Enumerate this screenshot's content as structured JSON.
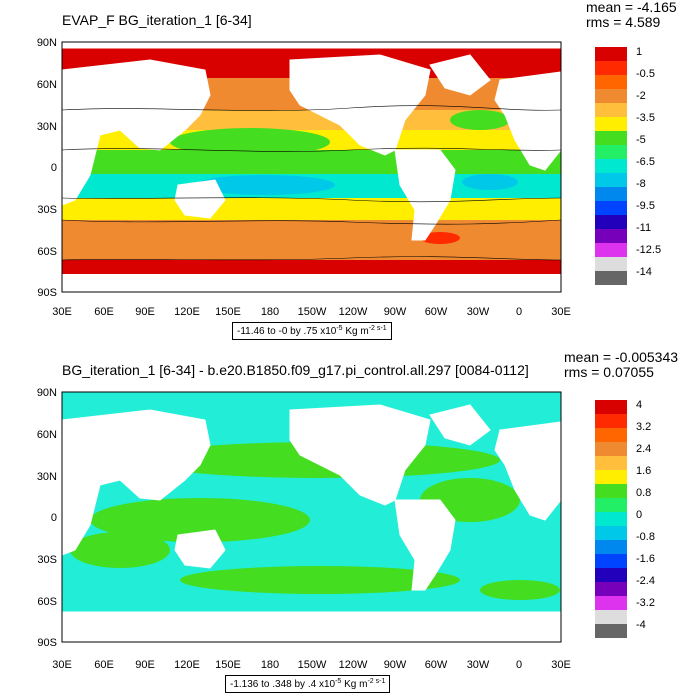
{
  "panels": [
    {
      "title": "EVAP_F BG_iteration_1 [6-34]",
      "mean": "mean = -4.165",
      "rms": "rms = 4.589",
      "range_prefix": "-11.46 to -0 by .75 x10",
      "range_exp": "-5",
      "range_units": " Kg m",
      "range_units_exp": "-2 s-1",
      "legend_labels": [
        "1",
        "-0.5",
        "-2",
        "-3.5",
        "-5",
        "-6.5",
        "-8",
        "-9.5",
        "-11",
        "-12.5",
        "-14"
      ],
      "legend_colors": [
        "#d90000",
        "#ff2a00",
        "#ff6600",
        "#f08a30",
        "#ffbf3c",
        "#ffee00",
        "#44dd20",
        "#22ee66",
        "#00e8d0",
        "#00c8e8",
        "#0088ee",
        "#0044ff",
        "#2200bb",
        "#7700bb",
        "#dd33ee",
        "#dddddd",
        "#666666"
      ]
    },
    {
      "title": "BG_iteration_1 [6-34] - b.e20.B1850.f09_g17.pi_control.all.297 [0084-0112]",
      "mean": "mean = -0.005343",
      "rms": "rms = 0.07055",
      "range_prefix": "-1.136 to .348 by .4 x10",
      "range_exp": "-5",
      "range_units": " Kg m",
      "range_units_exp": "-2 s-1",
      "legend_labels": [
        "4",
        "3.2",
        "2.4",
        "1.6",
        "0.8",
        "0",
        "-0.8",
        "-1.6",
        "-2.4",
        "-3.2",
        "-4"
      ],
      "legend_colors": [
        "#d90000",
        "#ff2a00",
        "#ff6600",
        "#f08a30",
        "#ffbf3c",
        "#ffee00",
        "#44dd20",
        "#22ee66",
        "#00e8d0",
        "#00c8e8",
        "#0088ee",
        "#0044ff",
        "#2200bb",
        "#7700bb",
        "#dd33ee",
        "#dddddd",
        "#666666"
      ]
    }
  ],
  "axes": {
    "lat_labels": [
      "90N",
      "60N",
      "30N",
      "0",
      "30S",
      "60S",
      "90S"
    ],
    "lon_labels": [
      "30E",
      "60E",
      "90E",
      "120E",
      "150E",
      "180",
      "150W",
      "120W",
      "90W",
      "60W",
      "30W",
      "0",
      "30E"
    ]
  },
  "colors": {
    "ocean_orange": "#f08a30",
    "ocean_light_orange": "#ffbf3c",
    "ocean_yellow": "#ffee00",
    "ocean_green": "#44dd20",
    "ocean_cyan": "#00e8d0",
    "ocean_red": "#d90000",
    "diff_green": "#44dd20",
    "diff_cyan": "#22eed8"
  }
}
